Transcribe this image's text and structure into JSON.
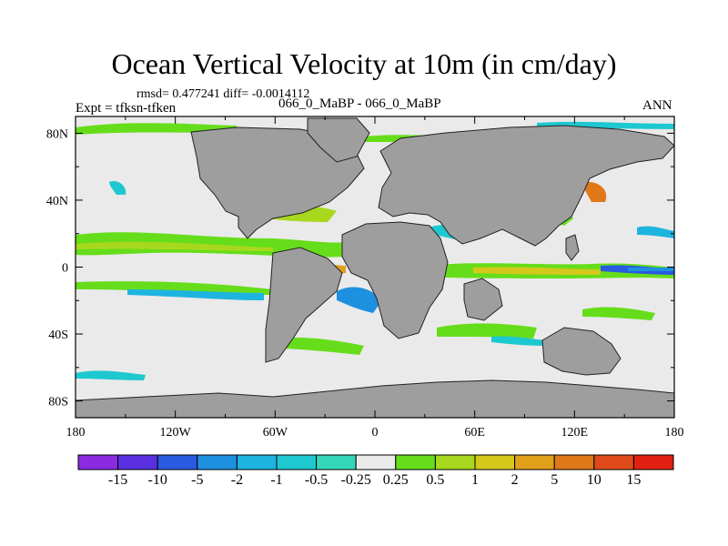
{
  "chart_data": {
    "type": "heatmap",
    "title": "Ocean Vertical Velocity at 10m (in cm/day)",
    "stats_line": "rmsd= 0.477241 diff= -0.0014112",
    "experiment": "Expt = tfksn-tfken",
    "subtitle": "066_0_MaBP - 066_0_MaBP",
    "season": "ANN",
    "x_ticks": [
      "180",
      "120W",
      "60W",
      "0",
      "60E",
      "120E",
      "180"
    ],
    "x_values": [
      -180,
      -120,
      -60,
      0,
      60,
      120,
      180
    ],
    "y_ticks": [
      "80N",
      "40N",
      "0",
      "40S",
      "80S"
    ],
    "y_values": [
      80,
      40,
      0,
      -40,
      -80
    ],
    "xlim": [
      -180,
      180
    ],
    "ylim": [
      -90,
      90
    ],
    "colorbar": {
      "labels": [
        "-15",
        "-10",
        "-5",
        "-2",
        "-1",
        "-0.5",
        "-0.25",
        "0.25",
        "0.5",
        "1",
        "2",
        "5",
        "10",
        "15"
      ],
      "colors": [
        "#8a2be2",
        "#5a2fe0",
        "#2a5ae0",
        "#1e90e0",
        "#1eb4e0",
        "#1ec8d0",
        "#33d6b8",
        "#eaeaea",
        "#66dd1a",
        "#a8d81e",
        "#d4c81a",
        "#e0a01a",
        "#e0781a",
        "#e04a1a",
        "#e02010"
      ]
    },
    "land_color": "#9e9e9e",
    "ocean_color": "#eaeaea"
  }
}
